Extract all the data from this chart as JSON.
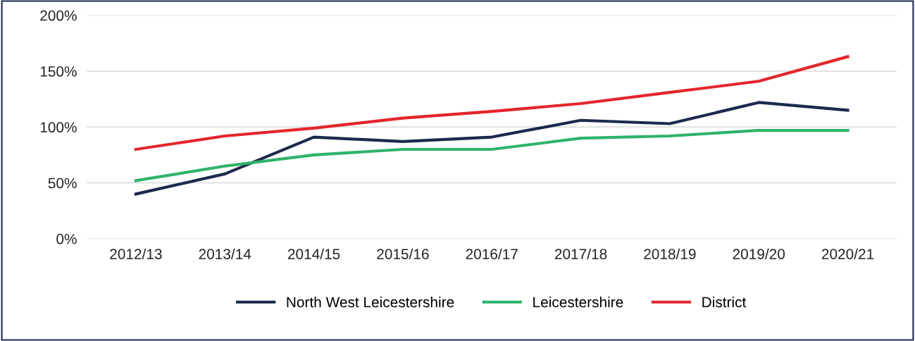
{
  "chart_data": {
    "type": "line",
    "categories": [
      "2012/13",
      "2013/14",
      "2014/15",
      "2015/16",
      "2016/17",
      "2017/18",
      "2018/19",
      "2019/20",
      "2020/21"
    ],
    "series": [
      {
        "name": "North West Leicestershire",
        "color": "#1c2a4e",
        "values": [
          40,
          58,
          91,
          87,
          91,
          106,
          103,
          122,
          115
        ]
      },
      {
        "name": "Leicestershire",
        "color": "#2eb36b",
        "values": [
          52,
          65,
          75,
          80,
          80,
          90,
          92,
          97,
          97
        ]
      },
      {
        "name": "District",
        "color": "#e3262d",
        "values": [
          80,
          92,
          99,
          108,
          114,
          121,
          131,
          141,
          163
        ]
      }
    ],
    "ylim": [
      0,
      200
    ],
    "yticks": [
      {
        "value": 0,
        "label": "0%"
      },
      {
        "value": 50,
        "label": "50%"
      },
      {
        "value": 100,
        "label": "100%"
      },
      {
        "value": 150,
        "label": "150%"
      },
      {
        "value": 200,
        "label": "200%"
      }
    ],
    "grid": "y",
    "legend": "bottom",
    "marker": "none",
    "line_style": "solid"
  }
}
